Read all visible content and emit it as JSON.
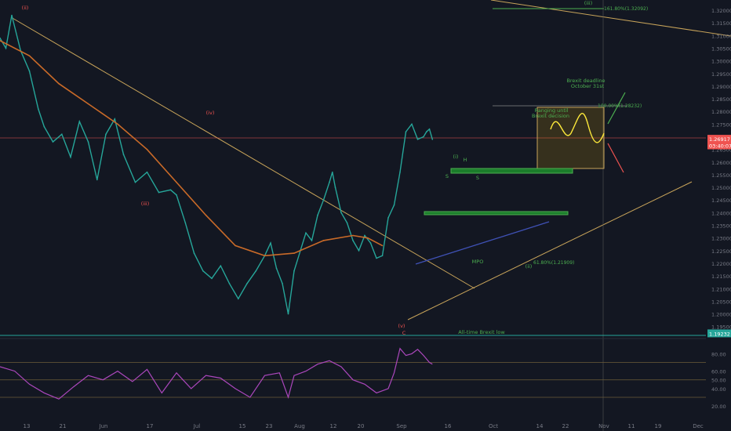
{
  "chart_data": [
    {
      "type": "line",
      "instrument": "GBPUSD",
      "x_ticks": [
        "13",
        "21",
        "Jun",
        "17",
        "Jul",
        "15",
        "23",
        "Aug",
        "12",
        "20",
        "Sep",
        "16",
        "Oct",
        "14",
        "22",
        "Nov",
        "11",
        "19",
        "Dec"
      ],
      "y_ticks": [
        "1.32000",
        "1.31500",
        "1.31000",
        "1.30500",
        "1.30000",
        "1.29500",
        "1.29000",
        "1.28500",
        "1.28000",
        "1.27500",
        "1.27000",
        "1.26500",
        "1.26000",
        "1.25500",
        "1.25000",
        "1.24500",
        "1.24000",
        "1.23500",
        "1.23000",
        "1.22500",
        "1.22000",
        "1.21500",
        "1.21000",
        "1.20500",
        "1.20000",
        "1.19500"
      ],
      "ylim": [
        1.1915,
        1.3225
      ],
      "price_markers": [
        {
          "label": "1.26917",
          "value": 1.2692,
          "color": "#ef5350"
        },
        {
          "label": "03:40:07",
          "value": 1.2666,
          "color": "#ef5350"
        },
        {
          "label": "1.19232",
          "value": 1.1923,
          "color": "#26a69a"
        }
      ],
      "annotations": [
        {
          "text": "(ii)",
          "color": "#ef5350"
        },
        {
          "text": "(iii)",
          "color": "#ef5350"
        },
        {
          "text": "(iv)",
          "color": "#ef5350"
        },
        {
          "text": "(v)",
          "color": "#ef5350"
        },
        {
          "text": "C",
          "color": "#ef5350"
        },
        {
          "text": "(i)",
          "color": "#4caf50"
        },
        {
          "text": "(ii)",
          "color": "#4caf50"
        },
        {
          "text": "(iii)",
          "color": "#4caf50"
        },
        {
          "text": "S",
          "color": "#4caf50"
        },
        {
          "text": "H",
          "color": "#4caf50"
        },
        {
          "text": "S",
          "color": "#4caf50"
        },
        {
          "text": "MPO",
          "color": "#4caf50"
        },
        {
          "text": "Brexit deadline",
          "color": "#4caf50"
        },
        {
          "text": "October 31st",
          "color": "#4caf50"
        },
        {
          "text": "Ranging until",
          "color": "#4caf50"
        },
        {
          "text": "Brexit decision",
          "color": "#4caf50"
        },
        {
          "text": "All-time Brexit low",
          "color": "#4caf50"
        }
      ],
      "fib_labels": [
        "161.80%(1.32092)",
        "100.00%(1.28232)",
        "61.80%(1.21909)"
      ],
      "series": [
        {
          "name": "GBPUSD",
          "x": [
            0,
            2,
            4,
            7,
            10,
            13,
            15,
            18,
            21,
            24,
            27,
            30,
            33,
            36,
            39,
            42,
            46,
            50,
            54,
            58,
            60,
            63,
            66,
            69,
            72,
            75,
            78,
            81,
            84,
            87,
            90,
            92,
            94,
            96,
            98,
            100,
            104,
            106,
            108,
            110,
            112,
            113,
            114,
            116,
            118,
            120,
            122,
            124,
            126,
            128,
            130,
            132,
            134,
            136,
            138,
            140,
            142,
            144,
            145,
            146,
            147
          ],
          "y": [
            1.309,
            1.305,
            1.318,
            1.304,
            1.296,
            1.281,
            1.274,
            1.268,
            1.271,
            1.262,
            1.276,
            1.268,
            1.253,
            1.271,
            1.277,
            1.263,
            1.252,
            1.256,
            1.248,
            1.249,
            1.247,
            1.236,
            1.224,
            1.217,
            1.214,
            1.219,
            1.212,
            1.206,
            1.212,
            1.217,
            1.223,
            1.228,
            1.218,
            1.212,
            1.2,
            1.217,
            1.232,
            1.229,
            1.239,
            1.245,
            1.252,
            1.256,
            1.25,
            1.24,
            1.236,
            1.229,
            1.225,
            1.231,
            1.228,
            1.222,
            1.223,
            1.238,
            1.243,
            1.256,
            1.272,
            1.275,
            1.269,
            1.27,
            1.272,
            1.273,
            1.269
          ],
          "color": "#26a69a"
        },
        {
          "name": "MA",
          "x": [
            0,
            10,
            20,
            30,
            40,
            50,
            60,
            70,
            80,
            90,
            100,
            110,
            120,
            125,
            130
          ],
          "y": [
            1.308,
            1.302,
            1.291,
            1.283,
            1.275,
            1.265,
            1.252,
            1.239,
            1.227,
            1.223,
            1.224,
            1.229,
            1.231,
            1.23,
            1.227
          ],
          "color": "#c96a28"
        }
      ],
      "indicator": {
        "name": "RSI",
        "y_ticks": [
          "80.00",
          "60.00",
          "50.00",
          "40.00",
          "20.00"
        ],
        "levels": [
          70,
          50,
          30
        ],
        "ylim": [
          12,
          92
        ],
        "x": [
          0,
          5,
          10,
          15,
          20,
          25,
          30,
          35,
          40,
          45,
          50,
          55,
          60,
          65,
          70,
          75,
          80,
          85,
          90,
          95,
          98,
          100,
          104,
          108,
          112,
          116,
          120,
          124,
          128,
          132,
          134,
          136,
          138,
          140,
          142,
          144,
          146,
          147
        ],
        "y": [
          65,
          60,
          45,
          35,
          28,
          42,
          55,
          50,
          60,
          48,
          62,
          35,
          58,
          40,
          55,
          52,
          40,
          30,
          55,
          58,
          30,
          55,
          60,
          68,
          72,
          65,
          50,
          45,
          35,
          40,
          58,
          86,
          78,
          80,
          85,
          78,
          70,
          68
        ],
        "color": "#ab47bc"
      }
    }
  ]
}
